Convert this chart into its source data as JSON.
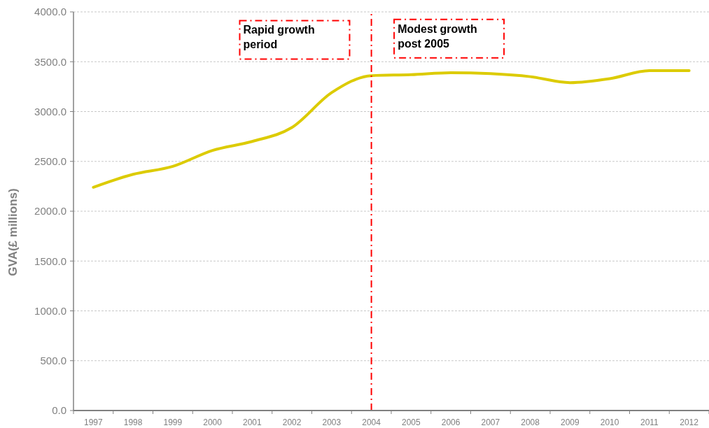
{
  "chart_data": {
    "type": "line",
    "ylabel": "GVA(£ millions)",
    "categories": [
      "1997",
      "1998",
      "1999",
      "2000",
      "2001",
      "2002",
      "2003",
      "2004",
      "2005",
      "2006",
      "2007",
      "2008",
      "2009",
      "2010",
      "2011",
      "2012"
    ],
    "series": [
      {
        "color": "#dccb00",
        "values": [
          2240,
          2370,
          2450,
          2610,
          2700,
          2840,
          3190,
          3360,
          3370,
          3390,
          3380,
          3350,
          3290,
          3330,
          3410,
          3410
        ]
      }
    ],
    "ylim": [
      0,
      4000
    ],
    "yticks": [
      {
        "value": 0,
        "label": "0.0"
      },
      {
        "value": 500,
        "label": "500.0"
      },
      {
        "value": 1000,
        "label": "1000.0"
      },
      {
        "value": 1500,
        "label": "1500.0"
      },
      {
        "value": 2000,
        "label": "2000.0"
      },
      {
        "value": 2500,
        "label": "2500.0"
      },
      {
        "value": 3000,
        "label": "3000.0"
      },
      {
        "value": 3500,
        "label": "3500.0"
      },
      {
        "value": 4000,
        "label": "4000.0"
      }
    ],
    "grid": "y",
    "marker": "none",
    "line_style": "solid",
    "ref_lines": [
      {
        "axis": "x",
        "value": "2004",
        "color": "#ff0000",
        "line_style": "dashdot"
      }
    ],
    "annotations": [
      "Rapid growth period",
      "Modest growth post 2005"
    ]
  }
}
